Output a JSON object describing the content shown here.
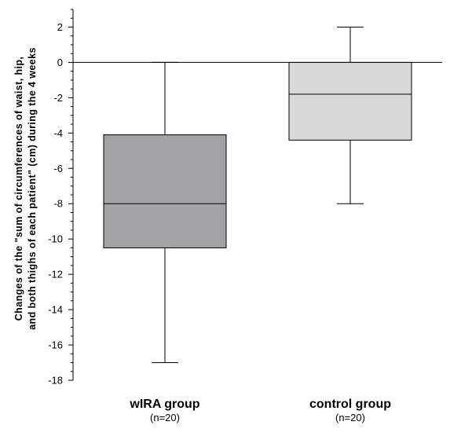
{
  "chart_data": {
    "type": "boxplot",
    "ylabel_lines": [
      "Changes of the \"sum of circumferences of waist, hip,",
      "and both thighs of each patient\" (cm) during the 4 weeks"
    ],
    "ylim": [
      -18,
      3
    ],
    "yticks": [
      2,
      0,
      -2,
      -4,
      -6,
      -8,
      -10,
      -12,
      -14,
      -16,
      -18
    ],
    "minor_tick_step": 0.5,
    "zero_line": true,
    "groups": [
      {
        "label": "wIRA group",
        "n_label": "(n=20)",
        "whisker_low": -17,
        "q1": -10.5,
        "median": -8,
        "q3": -4.1,
        "whisker_high": 0,
        "fill": "#a3a3a6"
      },
      {
        "label": "control group",
        "n_label": "(n=20)",
        "whisker_low": -8,
        "q1": -4.4,
        "median": -1.8,
        "q3": 0,
        "whisker_high": 2,
        "fill": "#d9d9d9"
      }
    ]
  }
}
